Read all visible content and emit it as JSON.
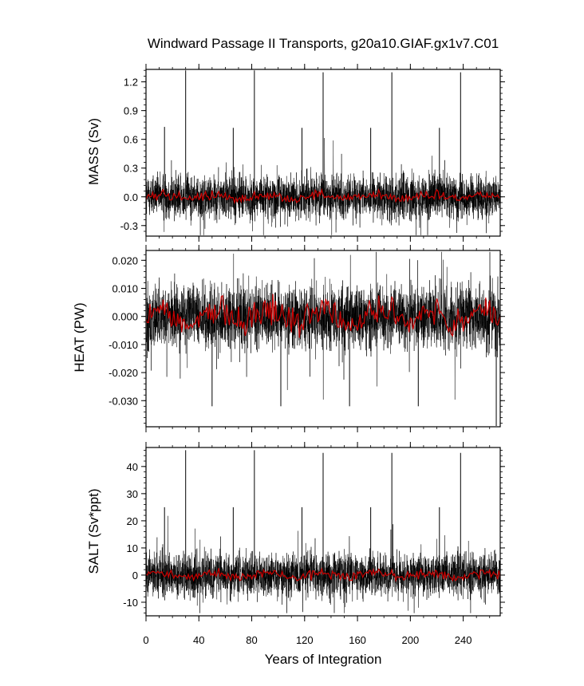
{
  "title": "Windward Passage II Transports, g20a10.GIAF.gx1v7.C01",
  "xlabel": "Years of Integration",
  "colors": {
    "monthly": "#000000",
    "annual": "#cc0000",
    "axis": "#000000"
  },
  "chart_data": [
    {
      "type": "line",
      "ylabel": "MASS (Sv)",
      "xlim": [
        0,
        268
      ],
      "ylim": [
        -0.41,
        1.33
      ],
      "yticks": [
        -0.3,
        0.0,
        0.3,
        0.6,
        0.9,
        1.2
      ],
      "ytick_labels": [
        "-0.3",
        "0.0",
        "0.3",
        "0.6",
        "0.9",
        "1.2"
      ],
      "xticks": [
        0,
        40,
        80,
        120,
        160,
        200,
        240
      ],
      "xtick_labels": [
        "0",
        "40",
        "80",
        "120",
        "160",
        "200",
        "240"
      ],
      "series": [
        {
          "style": "monthly",
          "color": "#000000",
          "mean": 0.0,
          "noise_amplitude": 0.2,
          "extreme_min": -0.4,
          "spikes": [
            {
              "x": 30,
              "y": 1.32
            },
            {
              "x": 82,
              "y": 1.32
            },
            {
              "x": 134,
              "y": 1.3
            },
            {
              "x": 186,
              "y": 1.3
            },
            {
              "x": 238,
              "y": 1.3
            },
            {
              "x": 14,
              "y": 0.73
            },
            {
              "x": 66,
              "y": 0.72
            },
            {
              "x": 118,
              "y": 0.72
            },
            {
              "x": 170,
              "y": 0.72
            },
            {
              "x": 222,
              "y": 0.72
            }
          ]
        },
        {
          "style": "annual",
          "color": "#cc0000",
          "mean": 0.0,
          "range": [
            -0.06,
            0.08
          ]
        }
      ]
    },
    {
      "type": "line",
      "ylabel": "HEAT (PW)",
      "xlim": [
        0,
        268
      ],
      "ylim": [
        -0.0393,
        0.0235
      ],
      "yticks": [
        -0.03,
        -0.02,
        -0.01,
        0.0,
        0.01,
        0.02
      ],
      "ytick_labels": [
        "-0.030",
        "-0.020",
        "-0.010",
        "0.000",
        "0.010",
        "0.020"
      ],
      "xticks": [
        0,
        40,
        80,
        120,
        160,
        200,
        240
      ],
      "xtick_labels": [
        "",
        "",
        "",
        "",
        "",
        "",
        ""
      ],
      "series": [
        {
          "style": "monthly",
          "color": "#000000",
          "mean": 0.0,
          "noise_amplitude": 0.01,
          "extreme_min": -0.039,
          "extreme_max": 0.023,
          "spikes": [
            {
              "x": 265,
              "y": -0.039
            },
            {
              "x": 50,
              "y": -0.032
            },
            {
              "x": 102,
              "y": -0.032
            },
            {
              "x": 154,
              "y": -0.032
            },
            {
              "x": 206,
              "y": -0.032
            }
          ]
        },
        {
          "style": "annual",
          "color": "#cc0000",
          "mean": 0.0,
          "range": [
            -0.008,
            0.008
          ]
        }
      ]
    },
    {
      "type": "line",
      "ylabel": "SALT (Sv*ppt)",
      "xlim": [
        0,
        268
      ],
      "ylim": [
        -15,
        47
      ],
      "yticks": [
        -10,
        0,
        10,
        20,
        30,
        40
      ],
      "ytick_labels": [
        "-10",
        "0",
        "10",
        "20",
        "30",
        "40"
      ],
      "xticks": [
        0,
        40,
        80,
        120,
        160,
        200,
        240
      ],
      "xtick_labels": [
        "0",
        "40",
        "80",
        "120",
        "160",
        "200",
        "240"
      ],
      "series": [
        {
          "style": "monthly",
          "color": "#000000",
          "mean": 0.0,
          "noise_amplitude": 7,
          "extreme_min": -14,
          "spikes": [
            {
              "x": 30,
              "y": 46
            },
            {
              "x": 82,
              "y": 46
            },
            {
              "x": 134,
              "y": 45
            },
            {
              "x": 186,
              "y": 45
            },
            {
              "x": 238,
              "y": 45
            },
            {
              "x": 14,
              "y": 25
            },
            {
              "x": 66,
              "y": 25
            },
            {
              "x": 118,
              "y": 25
            },
            {
              "x": 170,
              "y": 25
            },
            {
              "x": 222,
              "y": 25
            }
          ]
        },
        {
          "style": "annual",
          "color": "#cc0000",
          "mean": 0.0,
          "range": [
            -2,
            3
          ]
        }
      ]
    }
  ]
}
